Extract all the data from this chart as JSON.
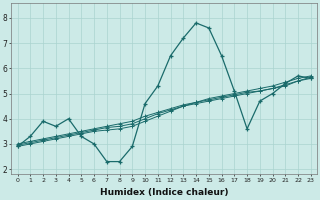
{
  "xlabel": "Humidex (Indice chaleur)",
  "xlim": [
    -0.5,
    23.5
  ],
  "ylim": [
    1.8,
    8.6
  ],
  "xticks": [
    0,
    1,
    2,
    3,
    4,
    5,
    6,
    7,
    8,
    9,
    10,
    11,
    12,
    13,
    14,
    15,
    16,
    17,
    18,
    19,
    20,
    21,
    22,
    23
  ],
  "yticks": [
    2,
    3,
    4,
    5,
    6,
    7,
    8
  ],
  "background_color": "#cceae7",
  "grid_color": "#aad4d0",
  "line_color": "#1a6b6b",
  "main_line": [
    2.9,
    3.3,
    3.9,
    3.7,
    4.0,
    3.3,
    3.0,
    2.3,
    2.3,
    2.9,
    4.6,
    5.3,
    6.5,
    7.2,
    7.8,
    7.6,
    6.5,
    5.1,
    3.6,
    4.7,
    5.0,
    5.4,
    5.7,
    5.6
  ],
  "trend1": [
    2.9,
    3.0,
    3.1,
    3.2,
    3.3,
    3.4,
    3.5,
    3.55,
    3.6,
    3.7,
    3.9,
    4.1,
    4.3,
    4.5,
    4.6,
    4.7,
    4.8,
    4.9,
    5.0,
    5.1,
    5.2,
    5.3,
    5.5,
    5.6
  ],
  "trend2": [
    2.95,
    3.05,
    3.15,
    3.25,
    3.35,
    3.45,
    3.55,
    3.65,
    3.7,
    3.8,
    4.0,
    4.2,
    4.35,
    4.5,
    4.65,
    4.75,
    4.85,
    4.95,
    5.05,
    5.1,
    5.2,
    5.35,
    5.5,
    5.65
  ],
  "trend3": [
    3.0,
    3.1,
    3.2,
    3.3,
    3.4,
    3.5,
    3.6,
    3.7,
    3.8,
    3.9,
    4.1,
    4.25,
    4.4,
    4.55,
    4.65,
    4.8,
    4.9,
    5.0,
    5.1,
    5.2,
    5.3,
    5.45,
    5.6,
    5.7
  ]
}
